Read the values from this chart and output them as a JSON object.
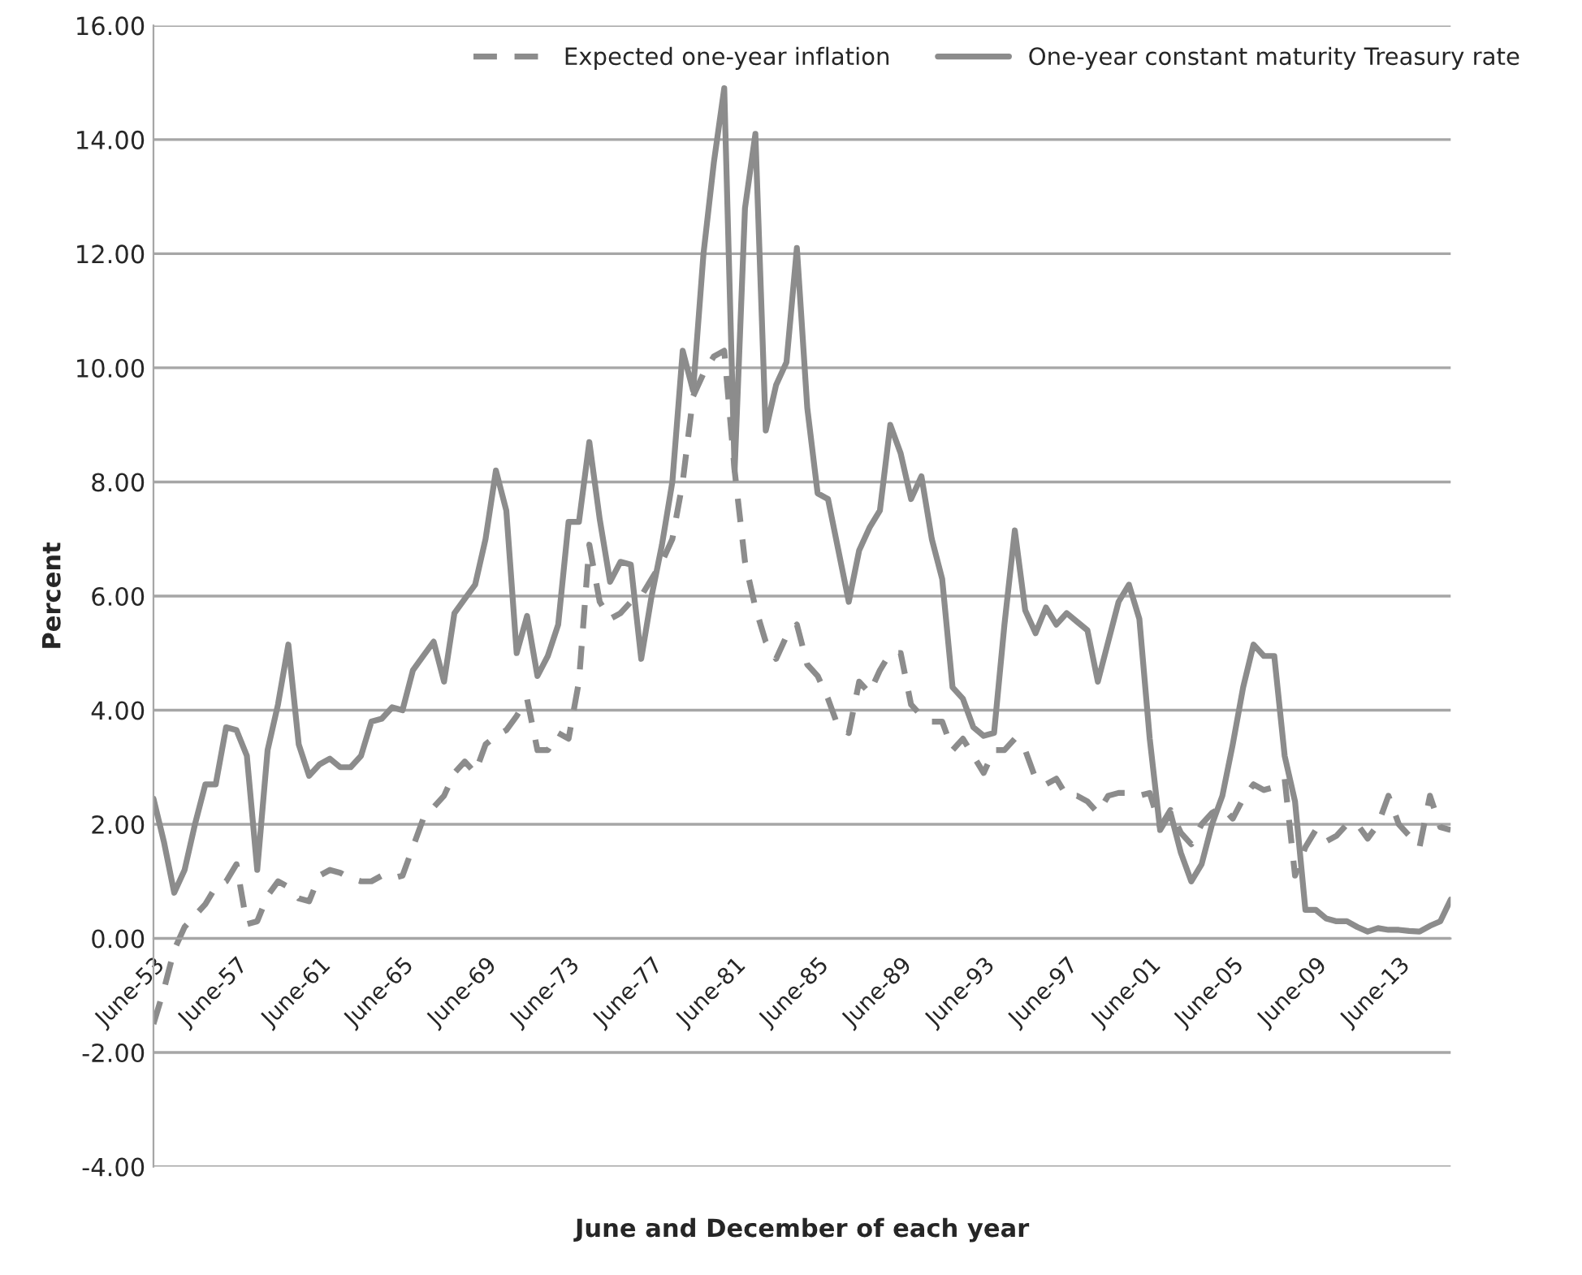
{
  "chart_data": {
    "type": "line",
    "xlabel": "June and December of each year",
    "ylabel": "Percent",
    "categories": [
      "June-53",
      null,
      null,
      null,
      null,
      null,
      null,
      null,
      "June-57",
      null,
      null,
      null,
      null,
      null,
      null,
      null,
      "June-61",
      null,
      null,
      null,
      null,
      null,
      null,
      null,
      "June-65",
      null,
      null,
      null,
      null,
      null,
      null,
      null,
      "June-69",
      null,
      null,
      null,
      null,
      null,
      null,
      null,
      "June-73",
      null,
      null,
      null,
      null,
      null,
      null,
      null,
      "June-77",
      null,
      null,
      null,
      null,
      null,
      null,
      null,
      "June-81",
      null,
      null,
      null,
      null,
      null,
      null,
      null,
      "June-85",
      null,
      null,
      null,
      null,
      null,
      null,
      null,
      "June-89",
      null,
      null,
      null,
      null,
      null,
      null,
      null,
      "June-93",
      null,
      null,
      null,
      null,
      null,
      null,
      null,
      "June-97",
      null,
      null,
      null,
      null,
      null,
      null,
      null,
      "June-01",
      null,
      null,
      null,
      null,
      null,
      null,
      null,
      "June-05",
      null,
      null,
      null,
      null,
      null,
      null,
      null,
      "June-09",
      null,
      null,
      null,
      null,
      null,
      null,
      null,
      "June-13",
      null,
      null,
      null,
      null,
      null
    ],
    "series": [
      {
        "name": "Expected one-year inflation",
        "color": "#8c8c8c",
        "line_style": "dashed",
        "values": [
          -1.5,
          -0.9,
          -0.2,
          0.2,
          0.4,
          0.6,
          0.9,
          1.0,
          1.3,
          0.25,
          0.3,
          0.75,
          1.0,
          0.9,
          0.7,
          0.65,
          1.1,
          1.2,
          1.15,
          1.05,
          1.0,
          1.0,
          1.1,
          1.05,
          1.1,
          1.6,
          2.1,
          2.3,
          2.5,
          2.9,
          3.1,
          2.9,
          3.4,
          3.55,
          3.65,
          3.9,
          4.2,
          3.3,
          3.3,
          3.6,
          3.5,
          4.5,
          6.9,
          5.9,
          5.6,
          5.7,
          5.9,
          6.0,
          6.3,
          6.6,
          7.0,
          8.0,
          9.5,
          9.9,
          10.2,
          10.3,
          8.2,
          6.6,
          5.8,
          5.2,
          4.9,
          5.3,
          5.5,
          4.8,
          4.6,
          4.2,
          3.7,
          3.6,
          4.5,
          4.3,
          4.7,
          5.0,
          5.0,
          4.1,
          3.9,
          3.8,
          3.8,
          3.3,
          3.5,
          3.2,
          2.9,
          3.3,
          3.3,
          3.5,
          3.3,
          2.8,
          2.7,
          2.8,
          2.5,
          2.5,
          2.4,
          2.2,
          2.5,
          2.55,
          2.55,
          2.5,
          2.55,
          1.95,
          2.25,
          1.85,
          1.65,
          2.0,
          2.2,
          2.3,
          2.1,
          2.45,
          2.7,
          2.6,
          2.65,
          2.8,
          1.1,
          1.6,
          1.9,
          1.7,
          1.8,
          2.0,
          2.0,
          1.75,
          2.0,
          2.5,
          2.0,
          1.8,
          1.6,
          2.5,
          1.95,
          1.9
        ]
      },
      {
        "name": "One-year constant maturity Treasury rate",
        "color": "#8c8c8c",
        "line_style": "solid",
        "values": [
          2.45,
          1.7,
          0.8,
          1.2,
          2.0,
          2.7,
          2.7,
          3.7,
          3.65,
          3.2,
          1.2,
          3.3,
          4.1,
          5.15,
          3.4,
          2.85,
          3.05,
          3.15,
          3.0,
          3.0,
          3.2,
          3.8,
          3.85,
          4.05,
          4.0,
          4.7,
          4.95,
          5.2,
          4.5,
          5.7,
          5.95,
          6.2,
          7.0,
          8.2,
          7.5,
          5.0,
          5.65,
          4.6,
          4.95,
          5.5,
          7.3,
          7.3,
          8.7,
          7.35,
          6.25,
          6.6,
          6.55,
          4.9,
          6.0,
          6.9,
          8.0,
          10.3,
          9.6,
          12.0,
          13.6,
          14.9,
          8.2,
          12.8,
          14.1,
          8.9,
          9.7,
          10.1,
          12.1,
          9.3,
          7.8,
          7.7,
          6.8,
          5.9,
          6.8,
          7.2,
          7.5,
          9.0,
          8.5,
          7.7,
          8.1,
          7.0,
          6.3,
          4.4,
          4.2,
          3.7,
          3.55,
          3.6,
          5.5,
          7.15,
          5.75,
          5.35,
          5.8,
          5.5,
          5.7,
          5.55,
          5.4,
          4.5,
          5.2,
          5.9,
          6.2,
          5.6,
          3.5,
          1.9,
          2.2,
          1.5,
          1.0,
          1.3,
          2.0,
          2.5,
          3.4,
          4.4,
          5.15,
          4.95,
          4.95,
          3.2,
          2.4,
          0.5,
          0.5,
          0.35,
          0.3,
          0.3,
          0.2,
          0.12,
          0.18,
          0.15,
          0.15,
          0.13,
          0.12,
          0.22,
          0.3,
          0.68
        ]
      }
    ],
    "ylim": [
      -4,
      16
    ],
    "yticks": [
      {
        "value": -4,
        "label": "-4.00"
      },
      {
        "value": -2,
        "label": "-2.00"
      },
      {
        "value": 0,
        "label": "0.00"
      },
      {
        "value": 2,
        "label": "2.00"
      },
      {
        "value": 4,
        "label": "4.00"
      },
      {
        "value": 6,
        "label": "6.00"
      },
      {
        "value": 8,
        "label": "8.00"
      },
      {
        "value": 10,
        "label": "10.00"
      },
      {
        "value": 12,
        "label": "12.00"
      },
      {
        "value": 14,
        "label": "14.00"
      },
      {
        "value": 16,
        "label": "16.00"
      }
    ],
    "grid": "y",
    "legend": "top right",
    "marker": "none"
  }
}
